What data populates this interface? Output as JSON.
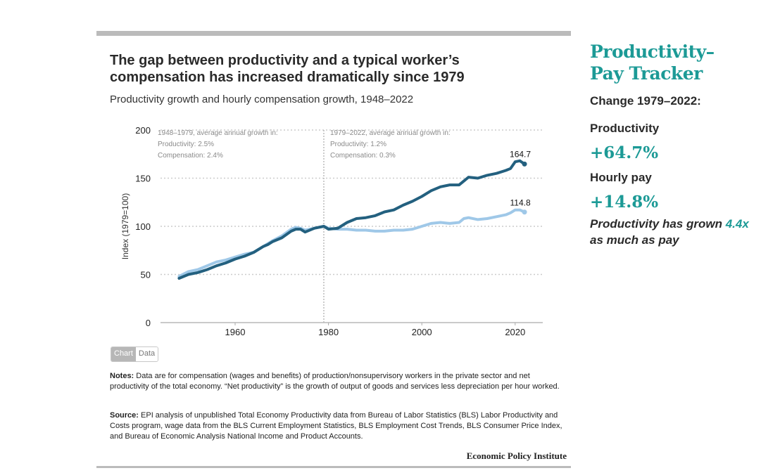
{
  "chart": {
    "title": "The gap between productivity and a typical worker’s compensation has increased dramatically since 1979",
    "subtitle": "Productivity growth and hourly compensation growth, 1948–2022",
    "toggle": {
      "chart_label": "Chart",
      "data_label": "Data",
      "active": "Chart"
    },
    "notes_label": "Notes:",
    "notes_text": " Data are for compensation (wages and benefits) of production/nonsupervisory workers in the private sector and net productivity of the total economy. “Net productivity” is the growth of output of goods and services less depreciation per hour worked.",
    "source_label": "Source:",
    "source_text": " EPI analysis of unpublished Total Economy Productivity data from Bureau of Labor Statistics (BLS) Labor Productivity and Costs program, wage data from the BLS Current Employment Statistics, BLS Employment Cost Trends, BLS Consumer Price Index, and Bureau of Economic Analysis National Income and Product Accounts.",
    "brand": "Economic Policy Institute"
  },
  "sidebar": {
    "tracker_line1": "Productivity–",
    "tracker_line2": "Pay Tracker",
    "change_label": "Change 1979–2022:",
    "productivity_label": "Productivity",
    "productivity_value": "+64.7%",
    "pay_label": "Hourly pay",
    "pay_value": "+14.8%",
    "summary_pre": "Productivity has grown ",
    "summary_highlight": "4.4x",
    "summary_post": " as much as pay"
  },
  "colors": {
    "productivity": "#23607f",
    "compensation": "#9fc8e8",
    "accent": "#1c9a96"
  },
  "chart_data": {
    "type": "line",
    "title": "The gap between productivity and a typical worker’s compensation has increased dramatically since 1979",
    "subtitle": "Productivity growth and hourly compensation growth, 1948–2022",
    "xlabel": "",
    "ylabel": "Index (1979=100)",
    "xlim": [
      1944,
      2026
    ],
    "ylim": [
      0,
      200
    ],
    "xticks": [
      1960,
      1980,
      2000,
      2020
    ],
    "yticks": [
      0,
      50,
      100,
      150,
      200
    ],
    "grid": true,
    "reference_line_x": 1979,
    "annotations": [
      {
        "lines": [
          "1948–1979, average annual growth in:",
          "Productivity: 2.5%",
          "Compensation: 2.4%"
        ],
        "position": "top-left"
      },
      {
        "lines": [
          "1979–2022, average annual growth in:",
          "Productivity: 1.2%",
          "Compensation: 0.3%"
        ],
        "position": "top-center"
      }
    ],
    "end_labels": {
      "productivity": "164.7",
      "compensation": "114.8"
    },
    "x": [
      1948,
      1950,
      1952,
      1954,
      1956,
      1958,
      1960,
      1962,
      1964,
      1966,
      1967,
      1968,
      1970,
      1972,
      1973,
      1974,
      1975,
      1977,
      1979,
      1980,
      1982,
      1984,
      1986,
      1988,
      1990,
      1992,
      1994,
      1996,
      1998,
      2000,
      2002,
      2004,
      2006,
      2008,
      2009,
      2010,
      2012,
      2014,
      2016,
      2018,
      2019,
      2020,
      2021,
      2022
    ],
    "series": [
      {
        "name": "Productivity",
        "values": [
          46,
          50,
          52,
          55,
          59,
          62,
          66,
          69,
          73,
          79,
          81,
          84,
          88,
          95,
          97,
          97,
          94,
          98,
          100,
          97,
          98,
          104,
          108,
          109,
          111,
          115,
          117,
          122,
          126,
          131,
          137,
          141,
          143,
          143,
          147,
          151,
          150,
          153,
          155,
          158,
          160,
          167,
          168,
          164.7
        ]
      },
      {
        "name": "Compensation",
        "values": [
          48,
          53,
          55,
          59,
          63,
          65,
          68,
          71,
          73,
          79,
          82,
          85,
          90,
          97,
          99,
          98,
          96,
          98,
          100,
          98,
          97,
          97,
          96,
          96,
          95,
          95,
          96,
          96,
          97,
          100,
          103,
          104,
          103,
          104,
          108,
          109,
          107,
          108,
          110,
          112,
          114,
          117,
          117,
          114.8
        ]
      }
    ]
  }
}
